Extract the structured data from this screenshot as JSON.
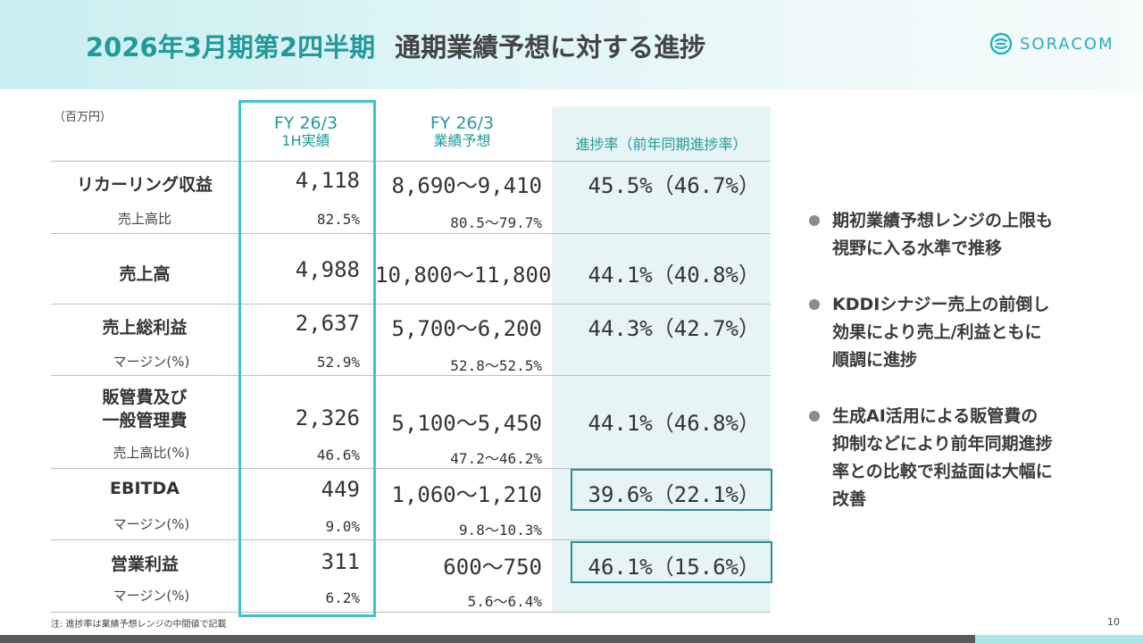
{
  "header": {
    "title_main": "2026年3月期第2四半期",
    "title_sub": "通期業績予想に対する進捗",
    "logo_text": "SORACOM"
  },
  "unit_label": "（百万円）",
  "columns": {
    "actual": {
      "line1": "FY 26/3",
      "line2": "1H実績"
    },
    "forecast": {
      "line1": "FY 26/3",
      "line2": "業績予想"
    },
    "progress": {
      "line1": "進捗率（前年同期進捗率）"
    }
  },
  "rows": {
    "recurring": {
      "label": "リカーリング収益",
      "actual": "4,118",
      "forecast": "8,690～9,410",
      "progress": "45.5%（46.7%）",
      "sub_label": "売上高比",
      "sub_actual": "82.5%",
      "sub_forecast": "80.5～79.7%"
    },
    "revenue": {
      "label": "売上高",
      "actual": "4,988",
      "forecast": "10,800～11,800",
      "progress": "44.1%（40.8%）"
    },
    "gross_profit": {
      "label": "売上総利益",
      "actual": "2,637",
      "forecast": "5,700～6,200",
      "progress": "44.3%（42.7%）",
      "sub_label": "マージン(%)",
      "sub_actual": "52.9%",
      "sub_forecast": "52.8～52.5%"
    },
    "sga": {
      "label_line1": "販管費及び",
      "label_line2": "一般管理費",
      "actual": "2,326",
      "forecast": "5,100～5,450",
      "progress": "44.1%（46.8%）",
      "sub_label": "売上高比(%)",
      "sub_actual": "46.6%",
      "sub_forecast": "47.2～46.2%"
    },
    "ebitda": {
      "label": "EBITDA",
      "actual": "449",
      "forecast": "1,060～1,210",
      "progress": "39.6%（22.1%）",
      "sub_label": "マージン(%)",
      "sub_actual": "9.0%",
      "sub_forecast": "9.8～10.3%"
    },
    "operating_profit": {
      "label": "営業利益",
      "actual": "311",
      "forecast": "600～750",
      "progress": "46.1%（15.6%）",
      "sub_label": "マージン(%)",
      "sub_actual": "6.2%",
      "sub_forecast": "5.6～6.4%"
    }
  },
  "bullets": [
    {
      "line1": "期初業績予想レンジの上限も",
      "line2": "視野に入る水準で推移"
    },
    {
      "line1": "KDDIシナジー売上の前倒し",
      "line2": "効果により売上/利益ともに",
      "line3": "順調に進捗"
    },
    {
      "line1": "生成AI活用による販管費の",
      "line2": "抑制などにより前年同期進捗",
      "line3": "率との比較で利益面は大幅に",
      "line4": "改善"
    }
  ],
  "footnote": "注: 進捗率は業績予想レンジの中間値で記載",
  "page_number": "10",
  "colors": {
    "accent": "#22999b",
    "highlight_box": "#41c3cd",
    "header_bg": "#d5f2f3"
  }
}
